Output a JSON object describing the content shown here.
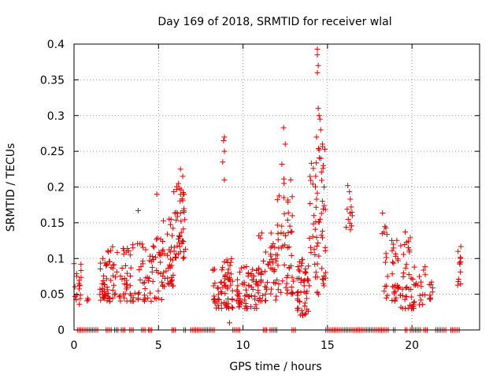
{
  "chart_data": {
    "type": "scatter",
    "title": "Day 169 of 2018, SRMTID for receiver wlal",
    "xlabel": "GPS time / hours",
    "ylabel": "SRMTID / TECUs",
    "xlim": [
      0,
      24
    ],
    "ylim": [
      0,
      0.4
    ],
    "xticks": [
      0,
      5,
      10,
      15,
      20
    ],
    "yticks": [
      0,
      0.05,
      0.1,
      0.15,
      0.2,
      0.25,
      0.3,
      0.35,
      0.4
    ],
    "xtick_labels": [
      "0",
      "5",
      "10",
      "15",
      "20"
    ],
    "ytick_labels": [
      "0",
      "0.05",
      "0.1",
      "0.15",
      "0.2",
      "0.25",
      "0.3",
      "0.35",
      "0.4"
    ],
    "grid": true,
    "marker": "+",
    "color": "#dd0000",
    "clusters": [
      {
        "x_range": [
          0.0,
          0.45
        ],
        "y_range": [
          0.035,
          0.1
        ],
        "count": 18
      },
      {
        "x_range": [
          0.7,
          0.85
        ],
        "y_range": [
          0.04,
          0.045
        ],
        "count": 3
      },
      {
        "x_range": [
          1.5,
          2.0
        ],
        "y_range": [
          0.04,
          0.1
        ],
        "count": 30
      },
      {
        "x_range": [
          2.0,
          3.5
        ],
        "y_range": [
          0.04,
          0.12
        ],
        "count": 60
      },
      {
        "x_range": [
          3.5,
          5.2
        ],
        "y_range": [
          0.04,
          0.13
        ],
        "count": 60
      },
      {
        "x_range": [
          5.2,
          5.9
        ],
        "y_range": [
          0.06,
          0.16
        ],
        "count": 40
      },
      {
        "x_range": [
          5.9,
          6.6
        ],
        "y_range": [
          0.1,
          0.22
        ],
        "count": 50
      },
      {
        "x_range": [
          8.2,
          9.4
        ],
        "y_range": [
          0.03,
          0.1
        ],
        "count": 70
      },
      {
        "x_range": [
          9.6,
          10.9
        ],
        "y_range": [
          0.03,
          0.09
        ],
        "count": 60
      },
      {
        "x_range": [
          10.9,
          12.0
        ],
        "y_range": [
          0.04,
          0.14
        ],
        "count": 55
      },
      {
        "x_range": [
          12.0,
          13.0
        ],
        "y_range": [
          0.05,
          0.22
        ],
        "count": 55
      },
      {
        "x_range": [
          13.2,
          13.9
        ],
        "y_range": [
          0.02,
          0.1
        ],
        "count": 50
      },
      {
        "x_range": [
          13.9,
          14.9
        ],
        "y_range": [
          0.05,
          0.26
        ],
        "count": 60
      },
      {
        "x_range": [
          16.1,
          16.5
        ],
        "y_range": [
          0.14,
          0.2
        ],
        "count": 10
      },
      {
        "x_range": [
          18.2,
          18.6
        ],
        "y_range": [
          0.04,
          0.17
        ],
        "count": 15
      },
      {
        "x_range": [
          18.8,
          19.9
        ],
        "y_range": [
          0.03,
          0.13
        ],
        "count": 55
      },
      {
        "x_range": [
          19.9,
          20.8
        ],
        "y_range": [
          0.03,
          0.09
        ],
        "count": 30
      },
      {
        "x_range": [
          21.0,
          21.3
        ],
        "y_range": [
          0.04,
          0.07
        ],
        "count": 10
      },
      {
        "x_range": [
          22.7,
          22.9
        ],
        "y_range": [
          0.06,
          0.12
        ],
        "count": 12
      }
    ],
    "notable_points": [
      {
        "x": 1.7,
        "y": 0.1
      },
      {
        "x": 3.8,
        "y": 0.167
      },
      {
        "x": 4.9,
        "y": 0.19
      },
      {
        "x": 6.3,
        "y": 0.225
      },
      {
        "x": 8.9,
        "y": 0.27
      },
      {
        "x": 8.85,
        "y": 0.265
      },
      {
        "x": 8.9,
        "y": 0.25
      },
      {
        "x": 8.8,
        "y": 0.235
      },
      {
        "x": 8.9,
        "y": 0.21
      },
      {
        "x": 9.2,
        "y": 0.01
      },
      {
        "x": 12.4,
        "y": 0.283
      },
      {
        "x": 12.5,
        "y": 0.26
      },
      {
        "x": 12.3,
        "y": 0.232
      },
      {
        "x": 14.4,
        "y": 0.393
      },
      {
        "x": 14.4,
        "y": 0.385
      },
      {
        "x": 14.45,
        "y": 0.37
      },
      {
        "x": 14.4,
        "y": 0.36
      },
      {
        "x": 14.45,
        "y": 0.31
      },
      {
        "x": 14.5,
        "y": 0.3
      },
      {
        "x": 14.55,
        "y": 0.295
      },
      {
        "x": 14.6,
        "y": 0.28
      },
      {
        "x": 14.35,
        "y": 0.27
      },
      {
        "x": 14.5,
        "y": 0.252
      },
      {
        "x": 14.7,
        "y": 0.26
      },
      {
        "x": 14.6,
        "y": 0.24
      },
      {
        "x": 14.75,
        "y": 0.23
      },
      {
        "x": 14.3,
        "y": 0.215
      },
      {
        "x": 14.8,
        "y": 0.2
      },
      {
        "x": 14.7,
        "y": 0.18
      },
      {
        "x": 14.2,
        "y": 0.16
      },
      {
        "x": 16.2,
        "y": 0.202
      },
      {
        "x": 16.35,
        "y": 0.183
      },
      {
        "x": 16.4,
        "y": 0.172
      },
      {
        "x": 19.6,
        "y": 0.137
      }
    ],
    "zero_segments": [
      [
        0.2,
        1.4
      ],
      [
        1.9,
        2.2
      ],
      [
        2.4,
        2.6
      ],
      [
        2.8,
        3.0
      ],
      [
        3.3,
        3.5
      ],
      [
        4.0,
        4.2
      ],
      [
        4.4,
        4.6
      ],
      [
        5.8,
        6.0
      ],
      [
        6.5,
        6.6
      ],
      [
        6.9,
        8.3
      ],
      [
        9.4,
        9.8
      ],
      [
        11.2,
        11.4
      ],
      [
        11.6,
        11.8
      ],
      [
        11.9,
        12.0
      ],
      [
        12.9,
        13.1
      ],
      [
        14.9,
        18.6
      ],
      [
        18.9,
        19.0
      ],
      [
        19.6,
        19.7
      ],
      [
        19.9,
        20.5
      ],
      [
        20.7,
        20.9
      ],
      [
        21.4,
        22.0
      ],
      [
        22.3,
        22.8
      ]
    ]
  }
}
